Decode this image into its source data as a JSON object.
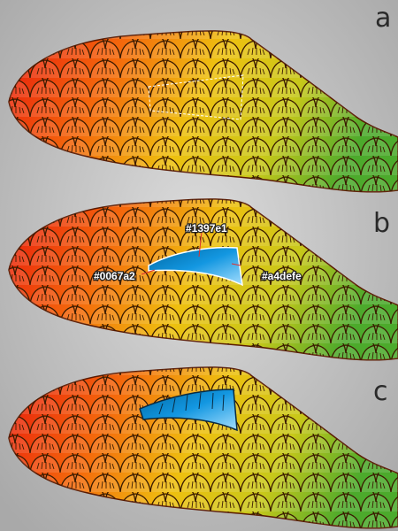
{
  "panels": [
    {
      "label": "a"
    },
    {
      "label": "b",
      "annotations": [
        "#1397e1",
        "#0067a2",
        "#a4defe"
      ]
    },
    {
      "label": "c"
    }
  ]
}
